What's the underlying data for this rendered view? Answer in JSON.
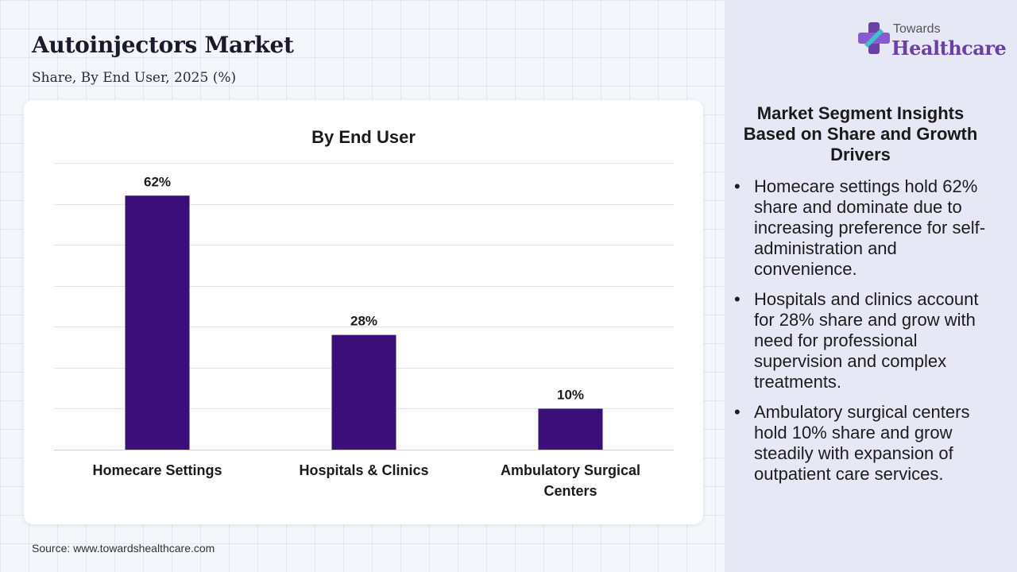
{
  "header": {
    "title": "Autoinjectors Market",
    "subtitle": "Share, By End User, 2025 (%)"
  },
  "logo": {
    "top": "Towards",
    "main": "Healthcare"
  },
  "source": "Source: www.towardshealthcare.com",
  "insights": {
    "heading": "Market Segment Insights Based on Share and Growth Drivers",
    "items": [
      "Homecare settings hold 62% share and dominate due to increasing preference for self-administration and convenience.",
      "Hospitals and clinics account for 28% share and grow with need for professional supervision and complex treatments.",
      "Ambulatory surgical centers hold 10% share and grow steadily with expansion of outpatient care services."
    ]
  },
  "colors": {
    "bar": "#3a0f7a",
    "logo_accent": "#6b3ea8"
  },
  "chart_data": {
    "type": "bar",
    "title": "By End User",
    "categories": [
      [
        "Homecare Settings"
      ],
      [
        "Hospitals & Clinics"
      ],
      [
        "Ambulatory Surgical",
        "Centers"
      ]
    ],
    "values": [
      62,
      28,
      10
    ],
    "data_labels": [
      "62%",
      "28%",
      "10%"
    ],
    "ylim": [
      0,
      70
    ],
    "grid": true,
    "legend": "none"
  }
}
